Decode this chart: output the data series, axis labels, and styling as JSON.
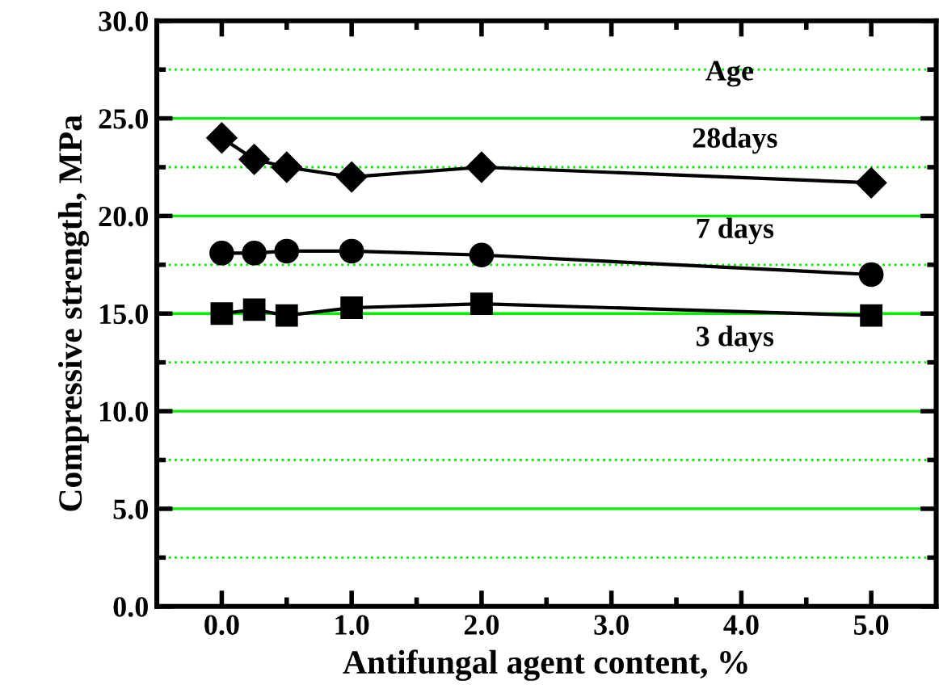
{
  "chart_data": {
    "type": "line",
    "xlabel": "Antifungal agent content, %",
    "ylabel": "Compressive strength, MPa",
    "annotations": [
      "Age"
    ],
    "x": [
      0,
      0.25,
      0.5,
      1,
      2,
      5
    ],
    "series": [
      {
        "name": "28days",
        "color": "#000000",
        "marker": "diamond",
        "values": [
          24.0,
          22.9,
          22.5,
          22.0,
          22.5,
          21.7
        ]
      },
      {
        "name": "7 days",
        "color": "#000000",
        "marker": "circle",
        "values": [
          18.1,
          18.1,
          18.2,
          18.2,
          18.0,
          17.0
        ]
      },
      {
        "name": "3 days",
        "color": "#000000",
        "marker": "square",
        "values": [
          15.0,
          15.2,
          14.9,
          15.3,
          15.5,
          14.9
        ]
      }
    ],
    "xlim": [
      -0.5,
      5.5
    ],
    "xticks": [
      {
        "value": 0,
        "label": "0.0"
      },
      {
        "value": 1,
        "label": "1.0"
      },
      {
        "value": 2,
        "label": "2.0"
      },
      {
        "value": 3,
        "label": "3.0"
      },
      {
        "value": 4,
        "label": "4.0"
      },
      {
        "value": 5,
        "label": "5.0"
      }
    ],
    "ylim": [
      0,
      30
    ],
    "yticks": [
      {
        "value": 0,
        "label": "0.0"
      },
      {
        "value": 2.5,
        "label": null
      },
      {
        "value": 5,
        "label": "5.0"
      },
      {
        "value": 7.5,
        "label": null
      },
      {
        "value": 10,
        "label": "10.0"
      },
      {
        "value": 12.5,
        "label": null
      },
      {
        "value": 15,
        "label": "15.0"
      },
      {
        "value": 17.5,
        "label": null
      },
      {
        "value": 20,
        "label": "20.0"
      },
      {
        "value": 22.5,
        "label": null
      },
      {
        "value": 25,
        "label": "25.0"
      },
      {
        "value": 27.5,
        "label": null
      },
      {
        "value": 30,
        "label": "30.0"
      }
    ],
    "grid": "y",
    "line_style": "solid",
    "legend": false
  }
}
